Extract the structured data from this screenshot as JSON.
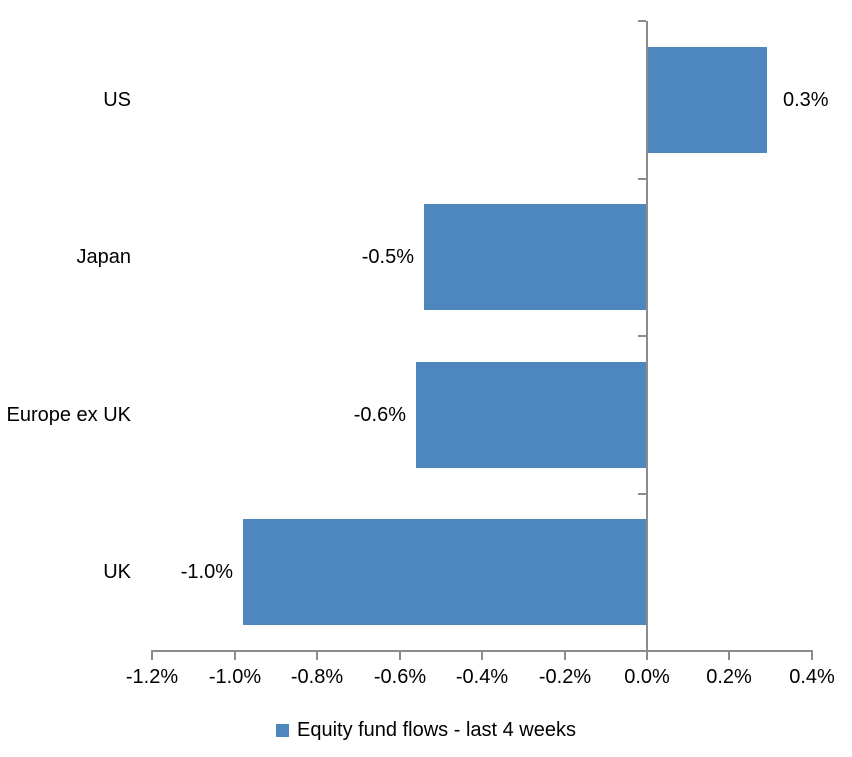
{
  "chart_data": {
    "type": "bar",
    "orientation": "horizontal",
    "title": "",
    "categories": [
      "US",
      "Japan",
      "Europe ex UK",
      "UK"
    ],
    "values": [
      0.3,
      -0.5,
      -0.6,
      -1.0
    ],
    "values_plotted_estimate": [
      0.29,
      -0.54,
      -0.56,
      -0.98
    ],
    "data_labels": [
      "0.3%",
      "-0.5%",
      "-0.6%",
      "-1.0%"
    ],
    "series": [
      {
        "name": "Equity fund flows - last 4 weeks"
      }
    ],
    "xlim": [
      -1.2,
      0.4
    ],
    "x_tick_values": [
      -1.2,
      -1.0,
      -0.8,
      -0.6,
      -0.4,
      -0.2,
      0.0,
      0.2,
      0.4
    ],
    "x_tick_labels": [
      "-1.2%",
      "-1.0%",
      "-0.8%",
      "-0.6%",
      "-0.4%",
      "-0.2%",
      "0.0%",
      "0.2%",
      "0.4%"
    ],
    "legend": {
      "position": "bottom",
      "label": "Equity fund flows - last 4 weeks"
    },
    "grid": false,
    "colors": {
      "bar": "#4E86BE",
      "axis": "#8C8C8C",
      "text": "#000000",
      "background": "#FFFFFF"
    }
  }
}
